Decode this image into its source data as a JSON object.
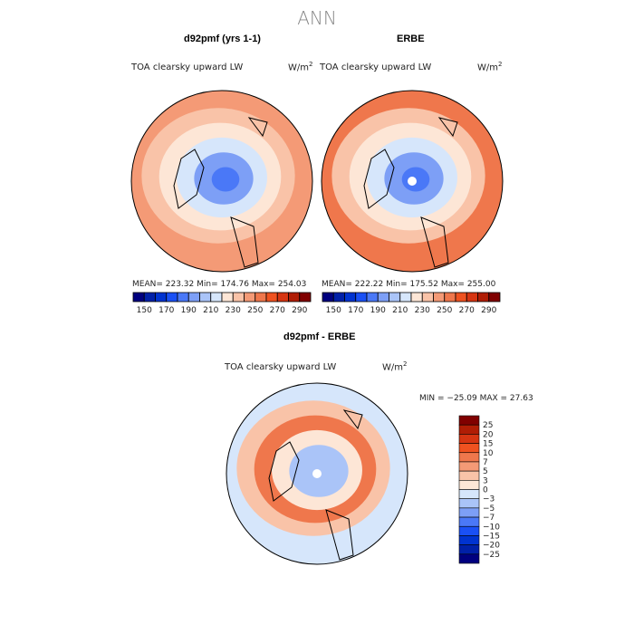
{
  "title": "ANN",
  "panels": [
    {
      "title": "d92pmf (yrs 1-1)",
      "variable": "TOA clearsky upward LW",
      "units": "W/m",
      "units_sup": "2",
      "stats": "MEAN= 223.32   Min= 174.76   Max= 254.03"
    },
    {
      "title": "ERBE",
      "variable": "TOA clearsky upward LW",
      "units": "W/m",
      "units_sup": "2",
      "stats": "MEAN= 222.22   Min= 175.52   Max= 255.00"
    },
    {
      "title": "d92pmf - ERBE",
      "variable": "TOA clearsky upward LW",
      "units": "W/m",
      "units_sup": "2",
      "stats": "MIN = −25.09 MAX =  27.63"
    }
  ],
  "colorbar_main": {
    "labels": [
      "150",
      "170",
      "190",
      "210",
      "230",
      "250",
      "270",
      "290"
    ],
    "colors": [
      "#00007f",
      "#0020a8",
      "#0033d0",
      "#1a50f5",
      "#4a78f7",
      "#7d9ff6",
      "#aac4f8",
      "#d6e6fb",
      "#fde6d6",
      "#f9c3a8",
      "#f49a76",
      "#ef774c",
      "#ef5220",
      "#d63512",
      "#b01d05",
      "#800000"
    ]
  },
  "colorbar_diff": {
    "labels": [
      "25",
      "20",
      "15",
      "10",
      "7",
      "5",
      "3",
      "0",
      "−3",
      "−5",
      "−7",
      "−10",
      "−15",
      "−20",
      "−25"
    ],
    "colors": [
      "#800000",
      "#b01d05",
      "#d63512",
      "#ef5220",
      "#ef774c",
      "#f49a76",
      "#f9c3a8",
      "#fde6d6",
      "#d6e6fb",
      "#aac4f8",
      "#7d9ff6",
      "#4a78f7",
      "#1a50f5",
      "#0033d0",
      "#0020a8",
      "#00007f"
    ]
  }
}
